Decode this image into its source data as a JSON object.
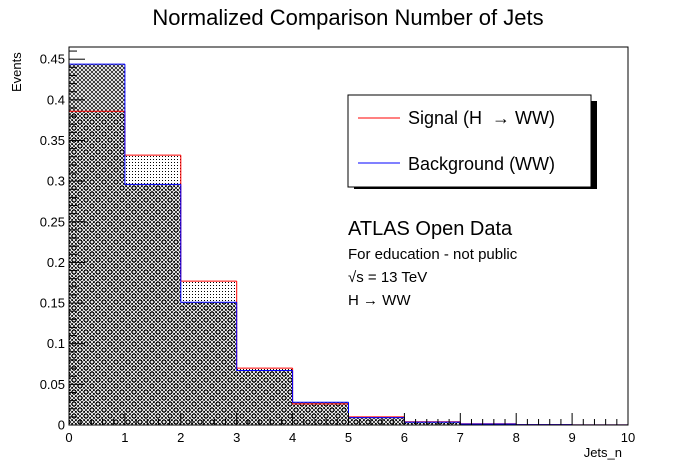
{
  "chart_data": {
    "type": "histogram",
    "title": "Normalized Comparison Number of Jets",
    "xlabel": "Jets_n",
    "ylabel": "Events",
    "xlim": [
      0,
      10
    ],
    "ylim": [
      0,
      0.465
    ],
    "x_ticks": [
      "0",
      "1",
      "2",
      "3",
      "4",
      "5",
      "6",
      "7",
      "8",
      "9",
      "10"
    ],
    "y_ticks": [
      "0",
      "0.05",
      "0.1",
      "0.15",
      "0.2",
      "0.25",
      "0.3",
      "0.35",
      "0.4",
      "0.45"
    ],
    "bin_edges": [
      0,
      1,
      2,
      3,
      4,
      5,
      6,
      7,
      8,
      9,
      10
    ],
    "series": [
      {
        "name": "Signal (H  → WW)",
        "color": "#ff0000",
        "fill": "dotted",
        "values": [
          0.386,
          0.332,
          0.177,
          0.07,
          0.026,
          0.01,
          0.004,
          0.0015,
          0.0005,
          0.0002
        ]
      },
      {
        "name": "Background (WW)",
        "color": "#0000ff",
        "fill": "cross-hatched",
        "values": [
          0.444,
          0.296,
          0.151,
          0.067,
          0.028,
          0.009,
          0.0035,
          0.0012,
          0.0004,
          0.0001
        ]
      }
    ],
    "legend_position": "top-right",
    "annotations": {
      "heading": "ATLAS Open Data",
      "line1": "For education - not public",
      "line2": "√s = 13 TeV",
      "line3": "H → WW"
    }
  }
}
